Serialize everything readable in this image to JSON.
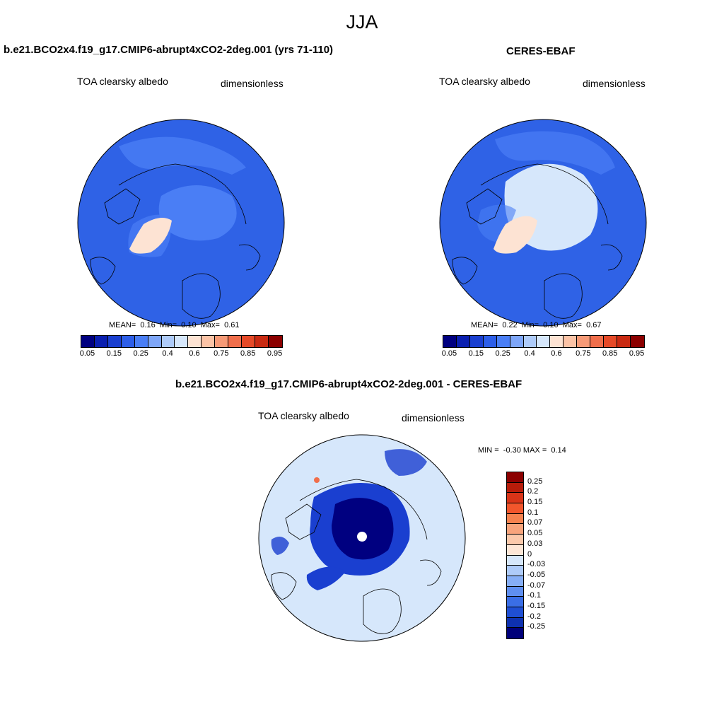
{
  "figure": {
    "title": "JJA"
  },
  "panels": [
    {
      "title": "b.e21.BCO2x4.f19_g17.CMIP6-abrupt4xCO2-2deg.001 (yrs 71-110)",
      "variable": "TOA clearsky albedo",
      "units": "dimensionless",
      "stats": {
        "mean_label": "MEAN=",
        "mean": "0.16",
        "min_label": "Min=",
        "min": "0.10",
        "max_label": "Max=",
        "max": "0.61"
      }
    },
    {
      "title": "CERES-EBAF",
      "variable": "TOA clearsky albedo",
      "units": "dimensionless",
      "stats": {
        "mean_label": "MEAN=",
        "mean": "0.22",
        "min_label": "Min=",
        "min": "0.10",
        "max_label": "Max=",
        "max": "0.67"
      }
    },
    {
      "title": "b.e21.BCO2x4.f19_g17.CMIP6-abrupt4xCO2-2deg.001 - CERES-EBAF",
      "variable": "TOA clearsky albedo",
      "units": "dimensionless",
      "stats": {
        "min_label": "MIN =",
        "min": "-0.30",
        "max_label": "MAX =",
        "max": "0.14"
      }
    }
  ],
  "colorbar_abs": {
    "colors": [
      "#000080",
      "#0a1fb0",
      "#1a3fd0",
      "#2d5ee8",
      "#4a7ef5",
      "#7ea6f8",
      "#aecbf9",
      "#d6e7fb",
      "#fde3d3",
      "#fbc3a6",
      "#f69a77",
      "#f06e4b",
      "#e64a28",
      "#c92a12",
      "#8b0000"
    ],
    "ticks": [
      "0.05",
      "0.15",
      "0.25",
      "0.4",
      "0.6",
      "0.75",
      "0.85",
      "0.95"
    ]
  },
  "colorbar_diff": {
    "colors": [
      "#8b0000",
      "#b71c0a",
      "#d93418",
      "#f2562c",
      "#f6824f",
      "#f8a47c",
      "#fbc9ab",
      "#fde6d6",
      "#d6e7fb",
      "#aecbf9",
      "#86aef6",
      "#5f8ff0",
      "#3a6ee6",
      "#1f4fd4",
      "#0e31b0",
      "#00007a"
    ],
    "ticks": [
      "0.25",
      "0.2",
      "0.15",
      "0.1",
      "0.07",
      "0.05",
      "0.03",
      "0",
      "-0.03",
      "-0.05",
      "-0.07",
      "-0.1",
      "-0.15",
      "-0.2",
      "-0.25"
    ]
  },
  "map_colors": {
    "ocean_abs": "#2f62e6",
    "ice_abs_model": "#4a7ef5",
    "ice_abs_obs": "#d6e7fb",
    "greenland_abs": "#fde3d3",
    "diff_background": "#d6e7fb",
    "diff_negative": "#1a3fd0",
    "diff_strong": "#000080"
  }
}
